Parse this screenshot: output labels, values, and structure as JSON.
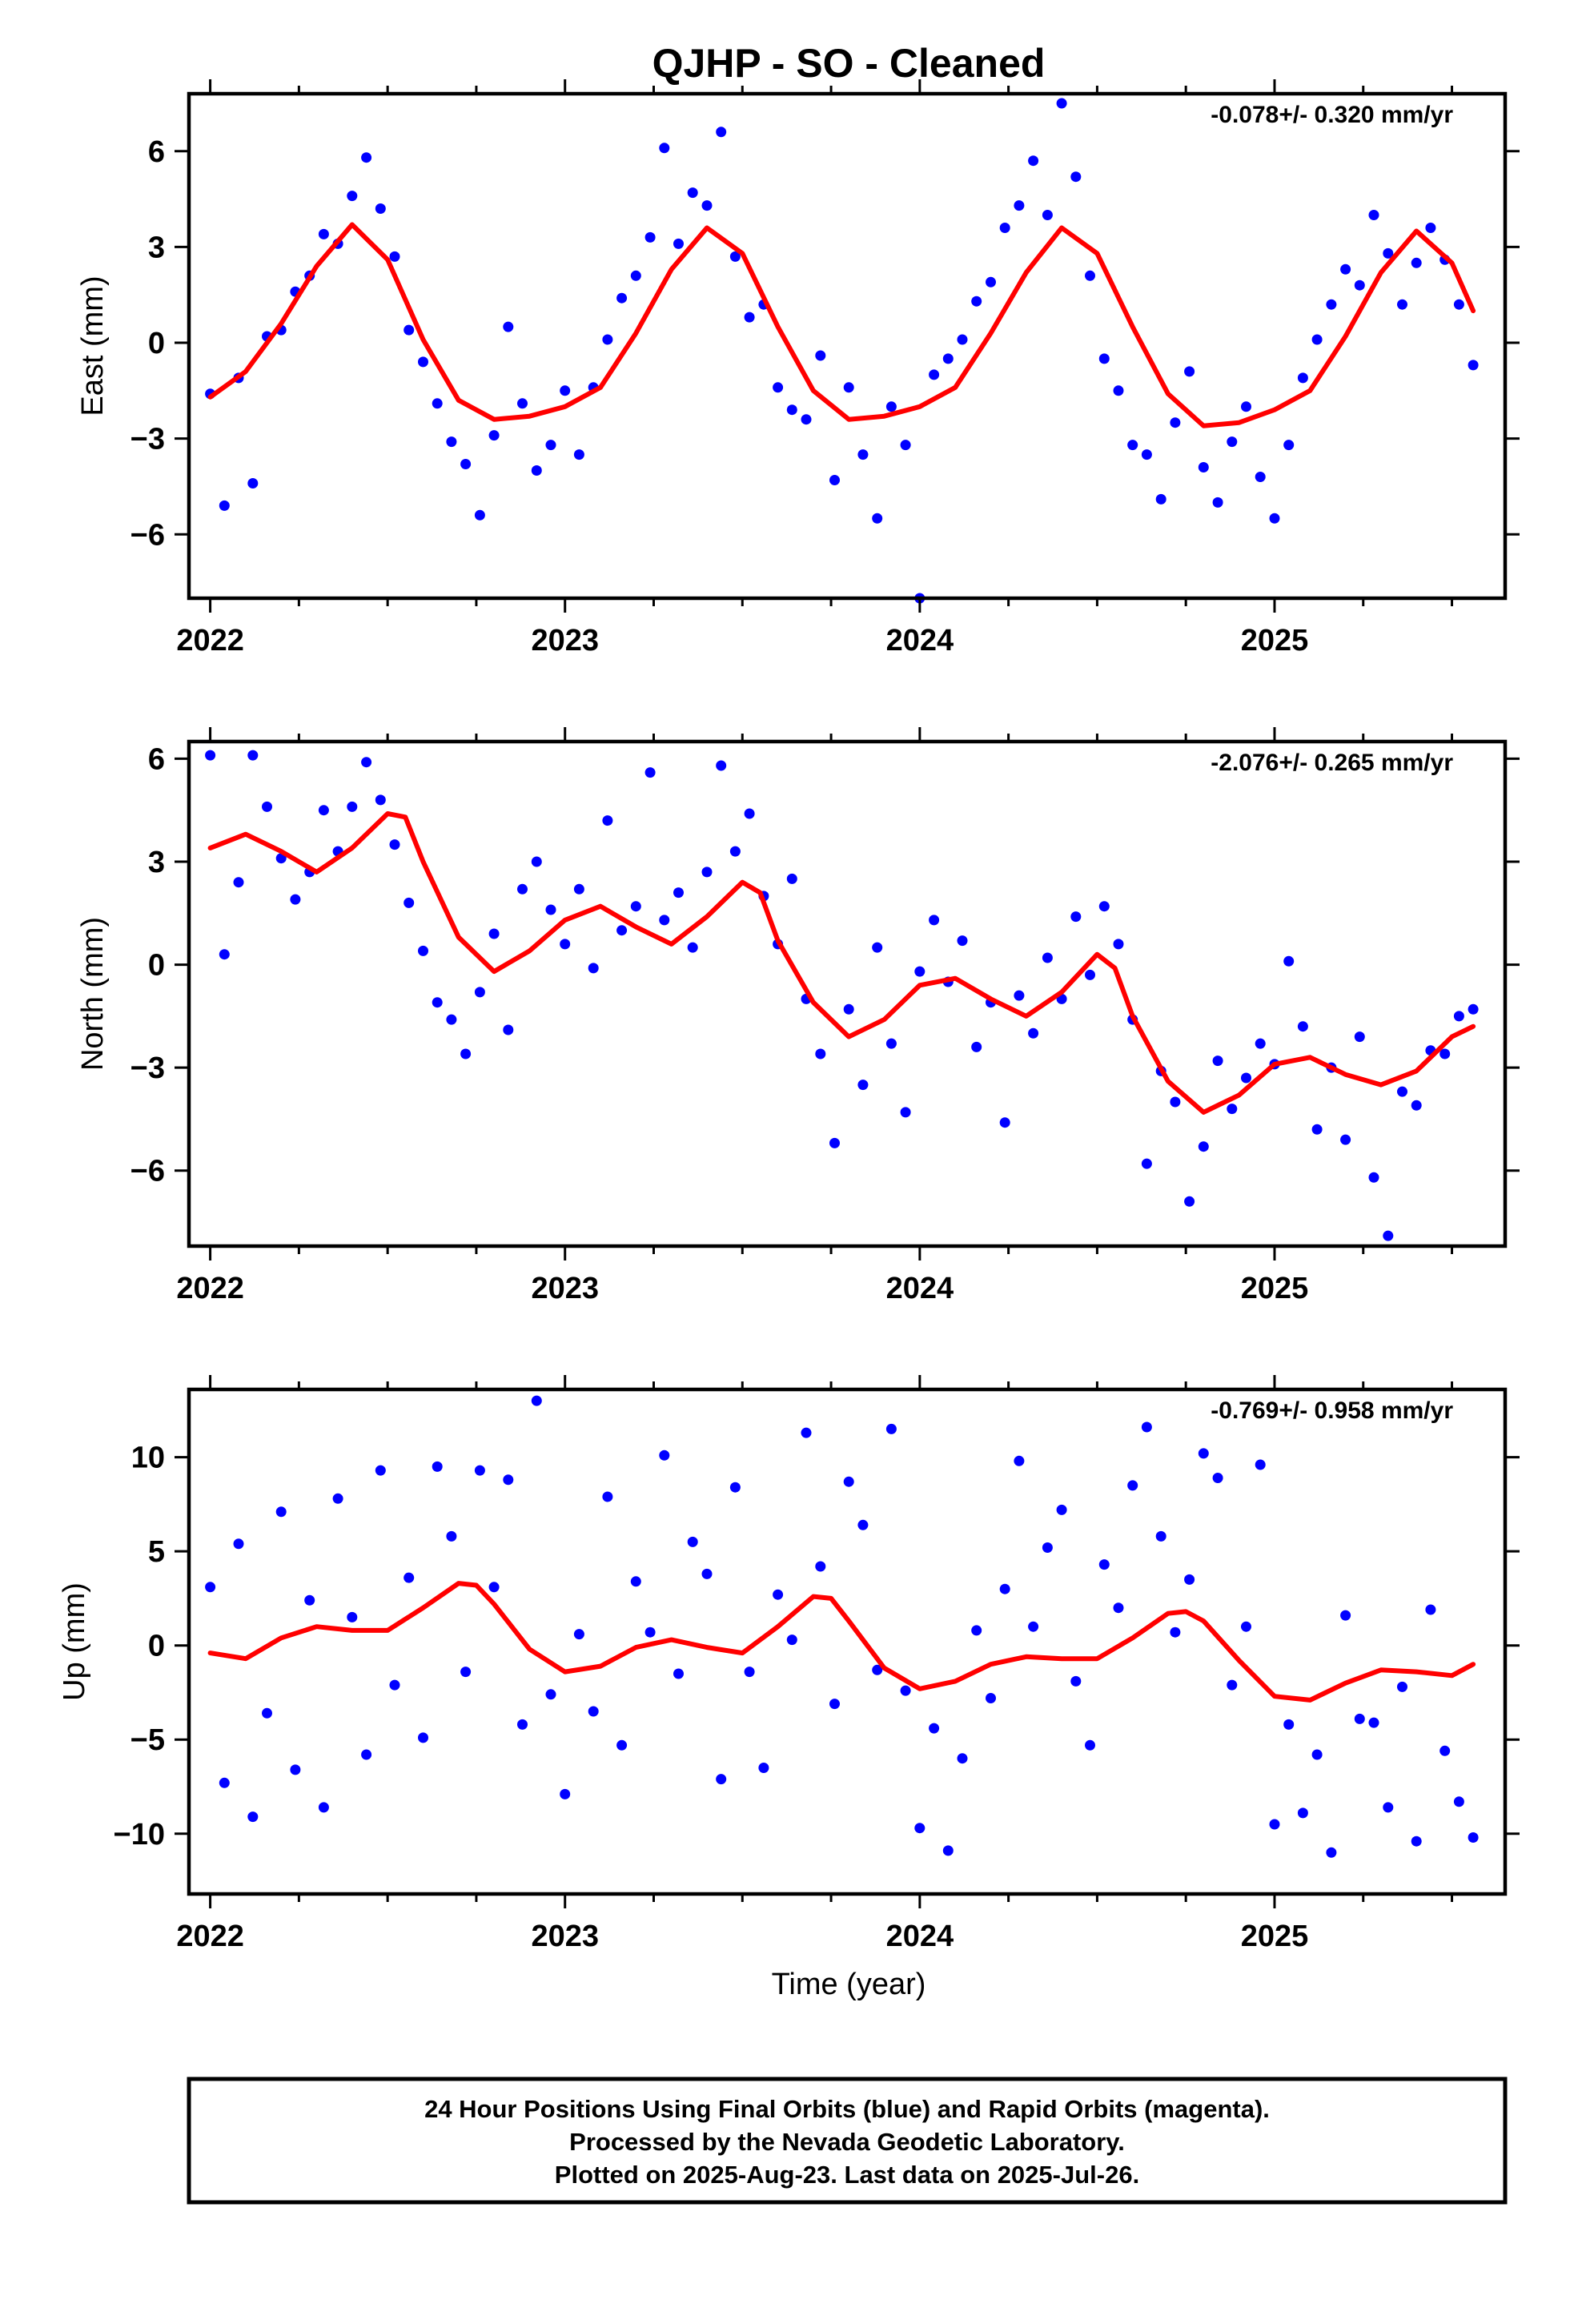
{
  "title": "QJHP  - SO - Cleaned",
  "colors": {
    "points": "#0000ff",
    "fit": "#ff0000",
    "frame": "#000000"
  },
  "x_axis_label": "Time (year)",
  "footer": {
    "line1": "24 Hour Positions Using Final Orbits (blue) and Rapid Orbits (magenta).",
    "line2": "Processed by the Nevada Geodetic Laboratory.",
    "line3": "Plotted on 2025-Aug-23. Last data on 2025-Jul-26."
  },
  "chart_data": [
    {
      "type": "scatter",
      "ylabel": "East (mm)",
      "rate_label": "-0.078+/- 0.320 mm/yr",
      "xlim": [
        2021.94,
        2025.65
      ],
      "ylim": [
        -8,
        7.8
      ],
      "xticks": [
        2022,
        2023,
        2024,
        2025
      ],
      "xtick_labels": [
        "2022",
        "2023",
        "2024",
        "2025"
      ],
      "yticks": [
        -6,
        -3,
        0,
        3,
        6
      ],
      "ytick_labels": [
        "−6",
        "−3",
        "0",
        "3",
        "6"
      ],
      "grid": false,
      "model": {
        "x": [
          2022.0,
          2022.1,
          2022.2,
          2022.3,
          2022.4,
          2022.5,
          2022.6,
          2022.7,
          2022.8,
          2022.9,
          2023.0,
          2023.1,
          2023.2,
          2023.3,
          2023.4,
          2023.5,
          2023.6,
          2023.7,
          2023.8,
          2023.9,
          2024.0,
          2024.1,
          2024.2,
          2024.3,
          2024.4,
          2024.5,
          2024.6,
          2024.7,
          2024.8,
          2024.9,
          2025.0,
          2025.1,
          2025.2,
          2025.3,
          2025.4,
          2025.5,
          2025.56
        ],
        "y": [
          -1.7,
          -0.9,
          0.6,
          2.4,
          3.7,
          2.6,
          0.1,
          -1.8,
          -2.4,
          -2.3,
          -2.0,
          -1.4,
          0.3,
          2.3,
          3.6,
          2.8,
          0.5,
          -1.5,
          -2.4,
          -2.3,
          -2.0,
          -1.4,
          0.3,
          2.2,
          3.6,
          2.8,
          0.5,
          -1.6,
          -2.6,
          -2.5,
          -2.1,
          -1.5,
          0.2,
          2.2,
          3.5,
          2.5,
          1.0
        ]
      },
      "points": {
        "x": [
          2022.0,
          2022.04,
          2022.08,
          2022.12,
          2022.16,
          2022.2,
          2022.24,
          2022.28,
          2022.32,
          2022.36,
          2022.4,
          2022.44,
          2022.48,
          2022.52,
          2022.56,
          2022.6,
          2022.64,
          2022.68,
          2022.72,
          2022.76,
          2022.8,
          2022.84,
          2022.88,
          2022.92,
          2022.96,
          2023.0,
          2023.04,
          2023.08,
          2023.12,
          2023.16,
          2023.2,
          2023.24,
          2023.28,
          2023.32,
          2023.36,
          2023.4,
          2023.44,
          2023.48,
          2023.52,
          2023.56,
          2023.6,
          2023.64,
          2023.68,
          2023.72,
          2023.76,
          2023.8,
          2023.84,
          2023.88,
          2023.92,
          2023.96,
          2024.0,
          2024.04,
          2024.08,
          2024.12,
          2024.16,
          2024.2,
          2024.24,
          2024.28,
          2024.32,
          2024.36,
          2024.4,
          2024.44,
          2024.48,
          2024.52,
          2024.56,
          2024.6,
          2024.64,
          2024.68,
          2024.72,
          2024.76,
          2024.8,
          2024.84,
          2024.88,
          2024.92,
          2024.96,
          2025.0,
          2025.04,
          2025.08,
          2025.12,
          2025.16,
          2025.2,
          2025.24,
          2025.28,
          2025.32,
          2025.36,
          2025.4,
          2025.44,
          2025.48,
          2025.52,
          2025.56
        ],
        "y": [
          -1.6,
          -5.1,
          -1.1,
          -4.4,
          0.2,
          0.4,
          1.6,
          2.1,
          3.4,
          3.1,
          4.6,
          5.8,
          4.2,
          2.7,
          0.4,
          -0.6,
          -1.9,
          -3.1,
          -3.8,
          -5.4,
          -2.9,
          0.5,
          -1.9,
          -4.0,
          -3.2,
          -1.5,
          -3.5,
          -1.4,
          0.1,
          1.4,
          2.1,
          3.3,
          6.1,
          3.1,
          4.7,
          4.3,
          6.6,
          2.7,
          0.8,
          1.2,
          -1.4,
          -2.1,
          -2.4,
          -0.4,
          -4.3,
          -1.4,
          -3.5,
          -5.5,
          -2.0,
          -3.2,
          -8.0,
          -1.0,
          -0.5,
          0.1,
          1.3,
          1.9,
          3.6,
          4.3,
          5.7,
          4.0,
          7.5,
          5.2,
          2.1,
          -0.5,
          -1.5,
          -3.2,
          -3.5,
          -4.9,
          -2.5,
          -0.9,
          -3.9,
          -5.0,
          -3.1,
          -2.0,
          -4.2,
          -5.5,
          -3.2,
          -1.1,
          0.1,
          1.2,
          2.3,
          1.8,
          4.0,
          2.8,
          1.2,
          2.5,
          3.6,
          2.6,
          1.2,
          -0.7
        ]
      }
    },
    {
      "type": "scatter",
      "ylabel": "North (mm)",
      "rate_label": "-2.076+/- 0.265 mm/yr",
      "xlim": [
        2021.94,
        2025.65
      ],
      "ylim": [
        -8.2,
        6.5
      ],
      "xticks": [
        2022,
        2023,
        2024,
        2025
      ],
      "xtick_labels": [
        "2022",
        "2023",
        "2024",
        "2025"
      ],
      "yticks": [
        -6,
        -3,
        0,
        3,
        6
      ],
      "ytick_labels": [
        "−6",
        "−3",
        "0",
        "3",
        "6"
      ],
      "grid": false,
      "model": {
        "x": [
          2022.0,
          2022.1,
          2022.2,
          2022.3,
          2022.4,
          2022.5,
          2022.55,
          2022.6,
          2022.7,
          2022.8,
          2022.9,
          2023.0,
          2023.1,
          2023.2,
          2023.3,
          2023.4,
          2023.5,
          2023.55,
          2023.6,
          2023.7,
          2023.8,
          2023.9,
          2024.0,
          2024.1,
          2024.2,
          2024.3,
          2024.4,
          2024.5,
          2024.55,
          2024.6,
          2024.7,
          2024.8,
          2024.9,
          2025.0,
          2025.1,
          2025.2,
          2025.3,
          2025.4,
          2025.5,
          2025.56
        ],
        "y": [
          3.4,
          3.8,
          3.3,
          2.7,
          3.4,
          4.4,
          4.3,
          3.0,
          0.8,
          -0.2,
          0.4,
          1.3,
          1.7,
          1.1,
          0.6,
          1.4,
          2.4,
          2.1,
          0.7,
          -1.1,
          -2.1,
          -1.6,
          -0.6,
          -0.4,
          -1.0,
          -1.5,
          -0.8,
          0.3,
          -0.1,
          -1.5,
          -3.4,
          -4.3,
          -3.8,
          -2.9,
          -2.7,
          -3.2,
          -3.5,
          -3.1,
          -2.1,
          -1.8
        ]
      },
      "points": {
        "x": [
          2022.0,
          2022.04,
          2022.08,
          2022.12,
          2022.16,
          2022.2,
          2022.24,
          2022.28,
          2022.32,
          2022.36,
          2022.4,
          2022.44,
          2022.48,
          2022.52,
          2022.56,
          2022.6,
          2022.64,
          2022.68,
          2022.72,
          2022.76,
          2022.8,
          2022.84,
          2022.88,
          2022.92,
          2022.96,
          2023.0,
          2023.04,
          2023.08,
          2023.12,
          2023.16,
          2023.2,
          2023.24,
          2023.28,
          2023.32,
          2023.36,
          2023.4,
          2023.44,
          2023.48,
          2023.52,
          2023.56,
          2023.6,
          2023.64,
          2023.68,
          2023.72,
          2023.76,
          2023.8,
          2023.84,
          2023.88,
          2023.92,
          2023.96,
          2024.0,
          2024.04,
          2024.08,
          2024.12,
          2024.16,
          2024.2,
          2024.24,
          2024.28,
          2024.32,
          2024.36,
          2024.4,
          2024.44,
          2024.48,
          2024.52,
          2024.56,
          2024.6,
          2024.64,
          2024.68,
          2024.72,
          2024.76,
          2024.8,
          2024.84,
          2024.88,
          2024.92,
          2024.96,
          2025.0,
          2025.04,
          2025.08,
          2025.12,
          2025.16,
          2025.2,
          2025.24,
          2025.28,
          2025.32,
          2025.36,
          2025.4,
          2025.44,
          2025.48,
          2025.52,
          2025.56
        ],
        "y": [
          6.1,
          0.3,
          2.4,
          6.1,
          4.6,
          3.1,
          1.9,
          2.7,
          4.5,
          3.3,
          4.6,
          5.9,
          4.8,
          3.5,
          1.8,
          0.4,
          -1.1,
          -1.6,
          -2.6,
          -0.8,
          0.9,
          -1.9,
          2.2,
          3.0,
          1.6,
          0.6,
          2.2,
          -0.1,
          4.2,
          1.0,
          1.7,
          5.6,
          1.3,
          2.1,
          0.5,
          2.7,
          5.8,
          3.3,
          4.4,
          2.0,
          0.6,
          2.5,
          -1.0,
          -2.6,
          -5.2,
          -1.3,
          -3.5,
          0.5,
          -2.3,
          -4.3,
          -0.2,
          1.3,
          -0.5,
          0.7,
          -2.4,
          -1.1,
          -4.6,
          -0.9,
          -2.0,
          0.2,
          -1.0,
          1.4,
          -0.3,
          1.7,
          0.6,
          -1.6,
          -5.8,
          -3.1,
          -4.0,
          -6.9,
          -5.3,
          -2.8,
          -4.2,
          -3.3,
          -2.3,
          -2.9,
          0.1,
          -1.8,
          -4.8,
          -3.0,
          -5.1,
          -2.1,
          -6.2,
          -7.9,
          -3.7,
          -4.1,
          -2.5,
          -2.6,
          -1.5,
          -1.3
        ]
      }
    },
    {
      "type": "scatter",
      "ylabel": "Up (mm)",
      "rate_label": "-0.769+/- 0.958 mm/yr",
      "xlim": [
        2021.94,
        2025.65
      ],
      "ylim": [
        -13.2,
        13.6
      ],
      "xticks": [
        2022,
        2023,
        2024,
        2025
      ],
      "xtick_labels": [
        "2022",
        "2023",
        "2024",
        "2025"
      ],
      "yticks": [
        -10,
        -5,
        0,
        5,
        10
      ],
      "ytick_labels": [
        "−10",
        "−5",
        "0",
        "5",
        "10"
      ],
      "grid": false,
      "model": {
        "x": [
          2022.0,
          2022.1,
          2022.2,
          2022.3,
          2022.4,
          2022.5,
          2022.6,
          2022.7,
          2022.75,
          2022.8,
          2022.9,
          2023.0,
          2023.1,
          2023.2,
          2023.3,
          2023.4,
          2023.5,
          2023.6,
          2023.7,
          2023.75,
          2023.8,
          2023.9,
          2024.0,
          2024.1,
          2024.2,
          2024.3,
          2024.4,
          2024.5,
          2024.6,
          2024.7,
          2024.75,
          2024.8,
          2024.9,
          2025.0,
          2025.1,
          2025.2,
          2025.3,
          2025.4,
          2025.5,
          2025.56
        ],
        "y": [
          -0.4,
          -0.7,
          0.4,
          1.0,
          0.8,
          0.8,
          2.0,
          3.3,
          3.2,
          2.2,
          -0.2,
          -1.4,
          -1.1,
          -0.1,
          0.3,
          -0.1,
          -0.4,
          1.0,
          2.6,
          2.5,
          1.3,
          -1.2,
          -2.3,
          -1.9,
          -1.0,
          -0.6,
          -0.7,
          -0.7,
          0.4,
          1.7,
          1.8,
          1.3,
          -0.8,
          -2.7,
          -2.9,
          -2.0,
          -1.3,
          -1.4,
          -1.6,
          -1.0
        ]
      },
      "points": {
        "x": [
          2022.0,
          2022.04,
          2022.08,
          2022.12,
          2022.16,
          2022.2,
          2022.24,
          2022.28,
          2022.32,
          2022.36,
          2022.4,
          2022.44,
          2022.48,
          2022.52,
          2022.56,
          2022.6,
          2022.64,
          2022.68,
          2022.72,
          2022.76,
          2022.8,
          2022.84,
          2022.88,
          2022.92,
          2022.96,
          2023.0,
          2023.04,
          2023.08,
          2023.12,
          2023.16,
          2023.2,
          2023.24,
          2023.28,
          2023.32,
          2023.36,
          2023.4,
          2023.44,
          2023.48,
          2023.52,
          2023.56,
          2023.6,
          2023.64,
          2023.68,
          2023.72,
          2023.76,
          2023.8,
          2023.84,
          2023.88,
          2023.92,
          2023.96,
          2024.0,
          2024.04,
          2024.08,
          2024.12,
          2024.16,
          2024.2,
          2024.24,
          2024.28,
          2024.32,
          2024.36,
          2024.4,
          2024.44,
          2024.48,
          2024.52,
          2024.56,
          2024.6,
          2024.64,
          2024.68,
          2024.72,
          2024.76,
          2024.8,
          2024.84,
          2024.88,
          2024.92,
          2024.96,
          2025.0,
          2025.04,
          2025.08,
          2025.12,
          2025.16,
          2025.2,
          2025.24,
          2025.28,
          2025.32,
          2025.36,
          2025.4,
          2025.44,
          2025.48,
          2025.52,
          2025.56
        ],
        "y": [
          3.1,
          -7.3,
          5.4,
          -9.1,
          -3.6,
          7.1,
          -6.6,
          2.4,
          -8.6,
          7.8,
          1.5,
          -5.8,
          9.3,
          -2.1,
          3.6,
          -4.9,
          9.5,
          5.8,
          -1.4,
          9.3,
          3.1,
          8.8,
          -4.2,
          13.0,
          -2.6,
          -7.9,
          0.6,
          -3.5,
          7.9,
          -5.3,
          3.4,
          0.7,
          10.1,
          -1.5,
          5.5,
          3.8,
          -7.1,
          8.4,
          -1.4,
          -6.5,
          2.7,
          0.3,
          11.3,
          4.2,
          -3.1,
          8.7,
          6.4,
          -1.3,
          11.5,
          -2.4,
          -9.7,
          -4.4,
          -10.9,
          -6.0,
          0.8,
          -2.8,
          3.0,
          9.8,
          1.0,
          5.2,
          7.2,
          -1.9,
          -5.3,
          4.3,
          2.0,
          8.5,
          11.6,
          5.8,
          0.7,
          3.5,
          10.2,
          8.9,
          -2.1,
          1.0,
          9.6,
          -9.5,
          -4.2,
          -8.9,
          -5.8,
          -11.0,
          1.6,
          -3.9,
          -4.1,
          -8.6,
          -2.2,
          -10.4,
          1.9,
          -5.6,
          -8.3,
          -10.2
        ]
      }
    }
  ]
}
